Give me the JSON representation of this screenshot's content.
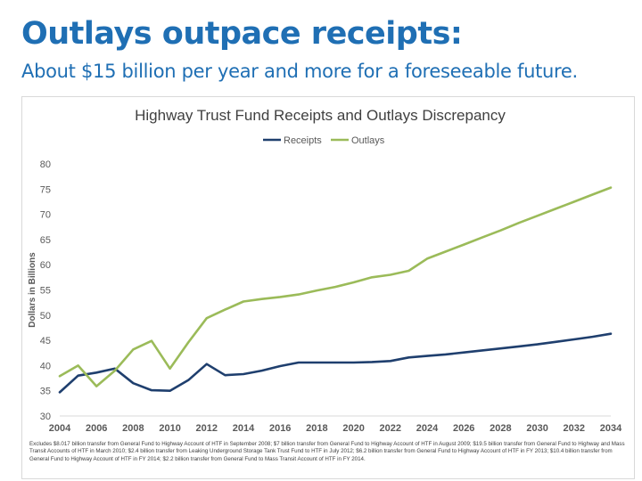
{
  "slide": {
    "title": "Outlays outpace receipts:",
    "subtitle": "About $15 billion per year and more for a foreseeable future."
  },
  "colors": {
    "title": "#1f6fb4",
    "receipts": "#1f3f6e",
    "outlays": "#9bbb59",
    "axis_text": "#595959",
    "grid": "#d9d9d9"
  },
  "chart_data": {
    "type": "line",
    "title": "Highway Trust Fund Receipts and Outlays Discrepancy",
    "xlabel": "",
    "ylabel": "Dollars in Billions",
    "xlim": [
      2004,
      2034
    ],
    "ylim": [
      30,
      80
    ],
    "yticks": [
      30,
      35,
      40,
      45,
      50,
      55,
      60,
      65,
      70,
      75,
      80
    ],
    "xticks": [
      2004,
      2006,
      2008,
      2010,
      2012,
      2014,
      2016,
      2018,
      2020,
      2022,
      2024,
      2026,
      2028,
      2030,
      2032,
      2034
    ],
    "grid": false,
    "legend_position": "top",
    "series": [
      {
        "name": "Receipts",
        "color": "#1f3f6e",
        "x": [
          2004,
          2005,
          2006,
          2007,
          2008,
          2009,
          2010,
          2011,
          2012,
          2013,
          2014,
          2015,
          2016,
          2017,
          2018,
          2019,
          2020,
          2021,
          2022,
          2023,
          2024,
          2025,
          2026,
          2027,
          2028,
          2029,
          2030,
          2031,
          2032,
          2033,
          2034
        ],
        "values": [
          34.7,
          38.0,
          38.6,
          39.4,
          36.5,
          35.1,
          35.0,
          37.1,
          40.3,
          38.1,
          38.3,
          39.0,
          39.9,
          40.6,
          40.6,
          40.6,
          40.6,
          40.7,
          40.9,
          41.6,
          41.9,
          42.2,
          42.6,
          43.0,
          43.4,
          43.8,
          44.2,
          44.7,
          45.2,
          45.7,
          46.3
        ]
      },
      {
        "name": "Outlays",
        "color": "#9bbb59",
        "x": [
          2004,
          2005,
          2006,
          2007,
          2008,
          2009,
          2010,
          2011,
          2012,
          2013,
          2014,
          2015,
          2016,
          2017,
          2018,
          2019,
          2020,
          2021,
          2022,
          2023,
          2024,
          2025,
          2026,
          2027,
          2028,
          2029,
          2030,
          2031,
          2032,
          2033,
          2034
        ],
        "values": [
          37.9,
          40.0,
          35.9,
          39.0,
          43.2,
          44.9,
          39.4,
          44.6,
          49.4,
          51.1,
          52.7,
          53.2,
          53.6,
          54.1,
          54.9,
          55.6,
          56.5,
          57.5,
          58.0,
          58.8,
          61.2,
          62.6,
          64.0,
          65.4,
          66.8,
          68.3,
          69.7,
          71.1,
          72.5,
          73.9,
          75.3
        ]
      }
    ],
    "footnote": "Excludes $8.017 billion transfer from General Fund to Highway Account of HTF in September 2008; $7 billion transfer from General Fund to Highway Account of HTF in August 2009; $19.5 billion transfer from General Fund to Highway and Mass Transit Accounts of HTF in March 2010; $2.4 billion transfer from Leaking Underground Storage Tank Trust Fund to HTF in July 2012; $6.2 billion transfer from General Fund to Highway Account of HTF in FY 2013; $10.4 billion transfer from General Fund to Highway Account of HTF in FY 2014; $2.2 billion transfer from General Fund to Mass Transit Account of HTF in FY 2014."
  }
}
